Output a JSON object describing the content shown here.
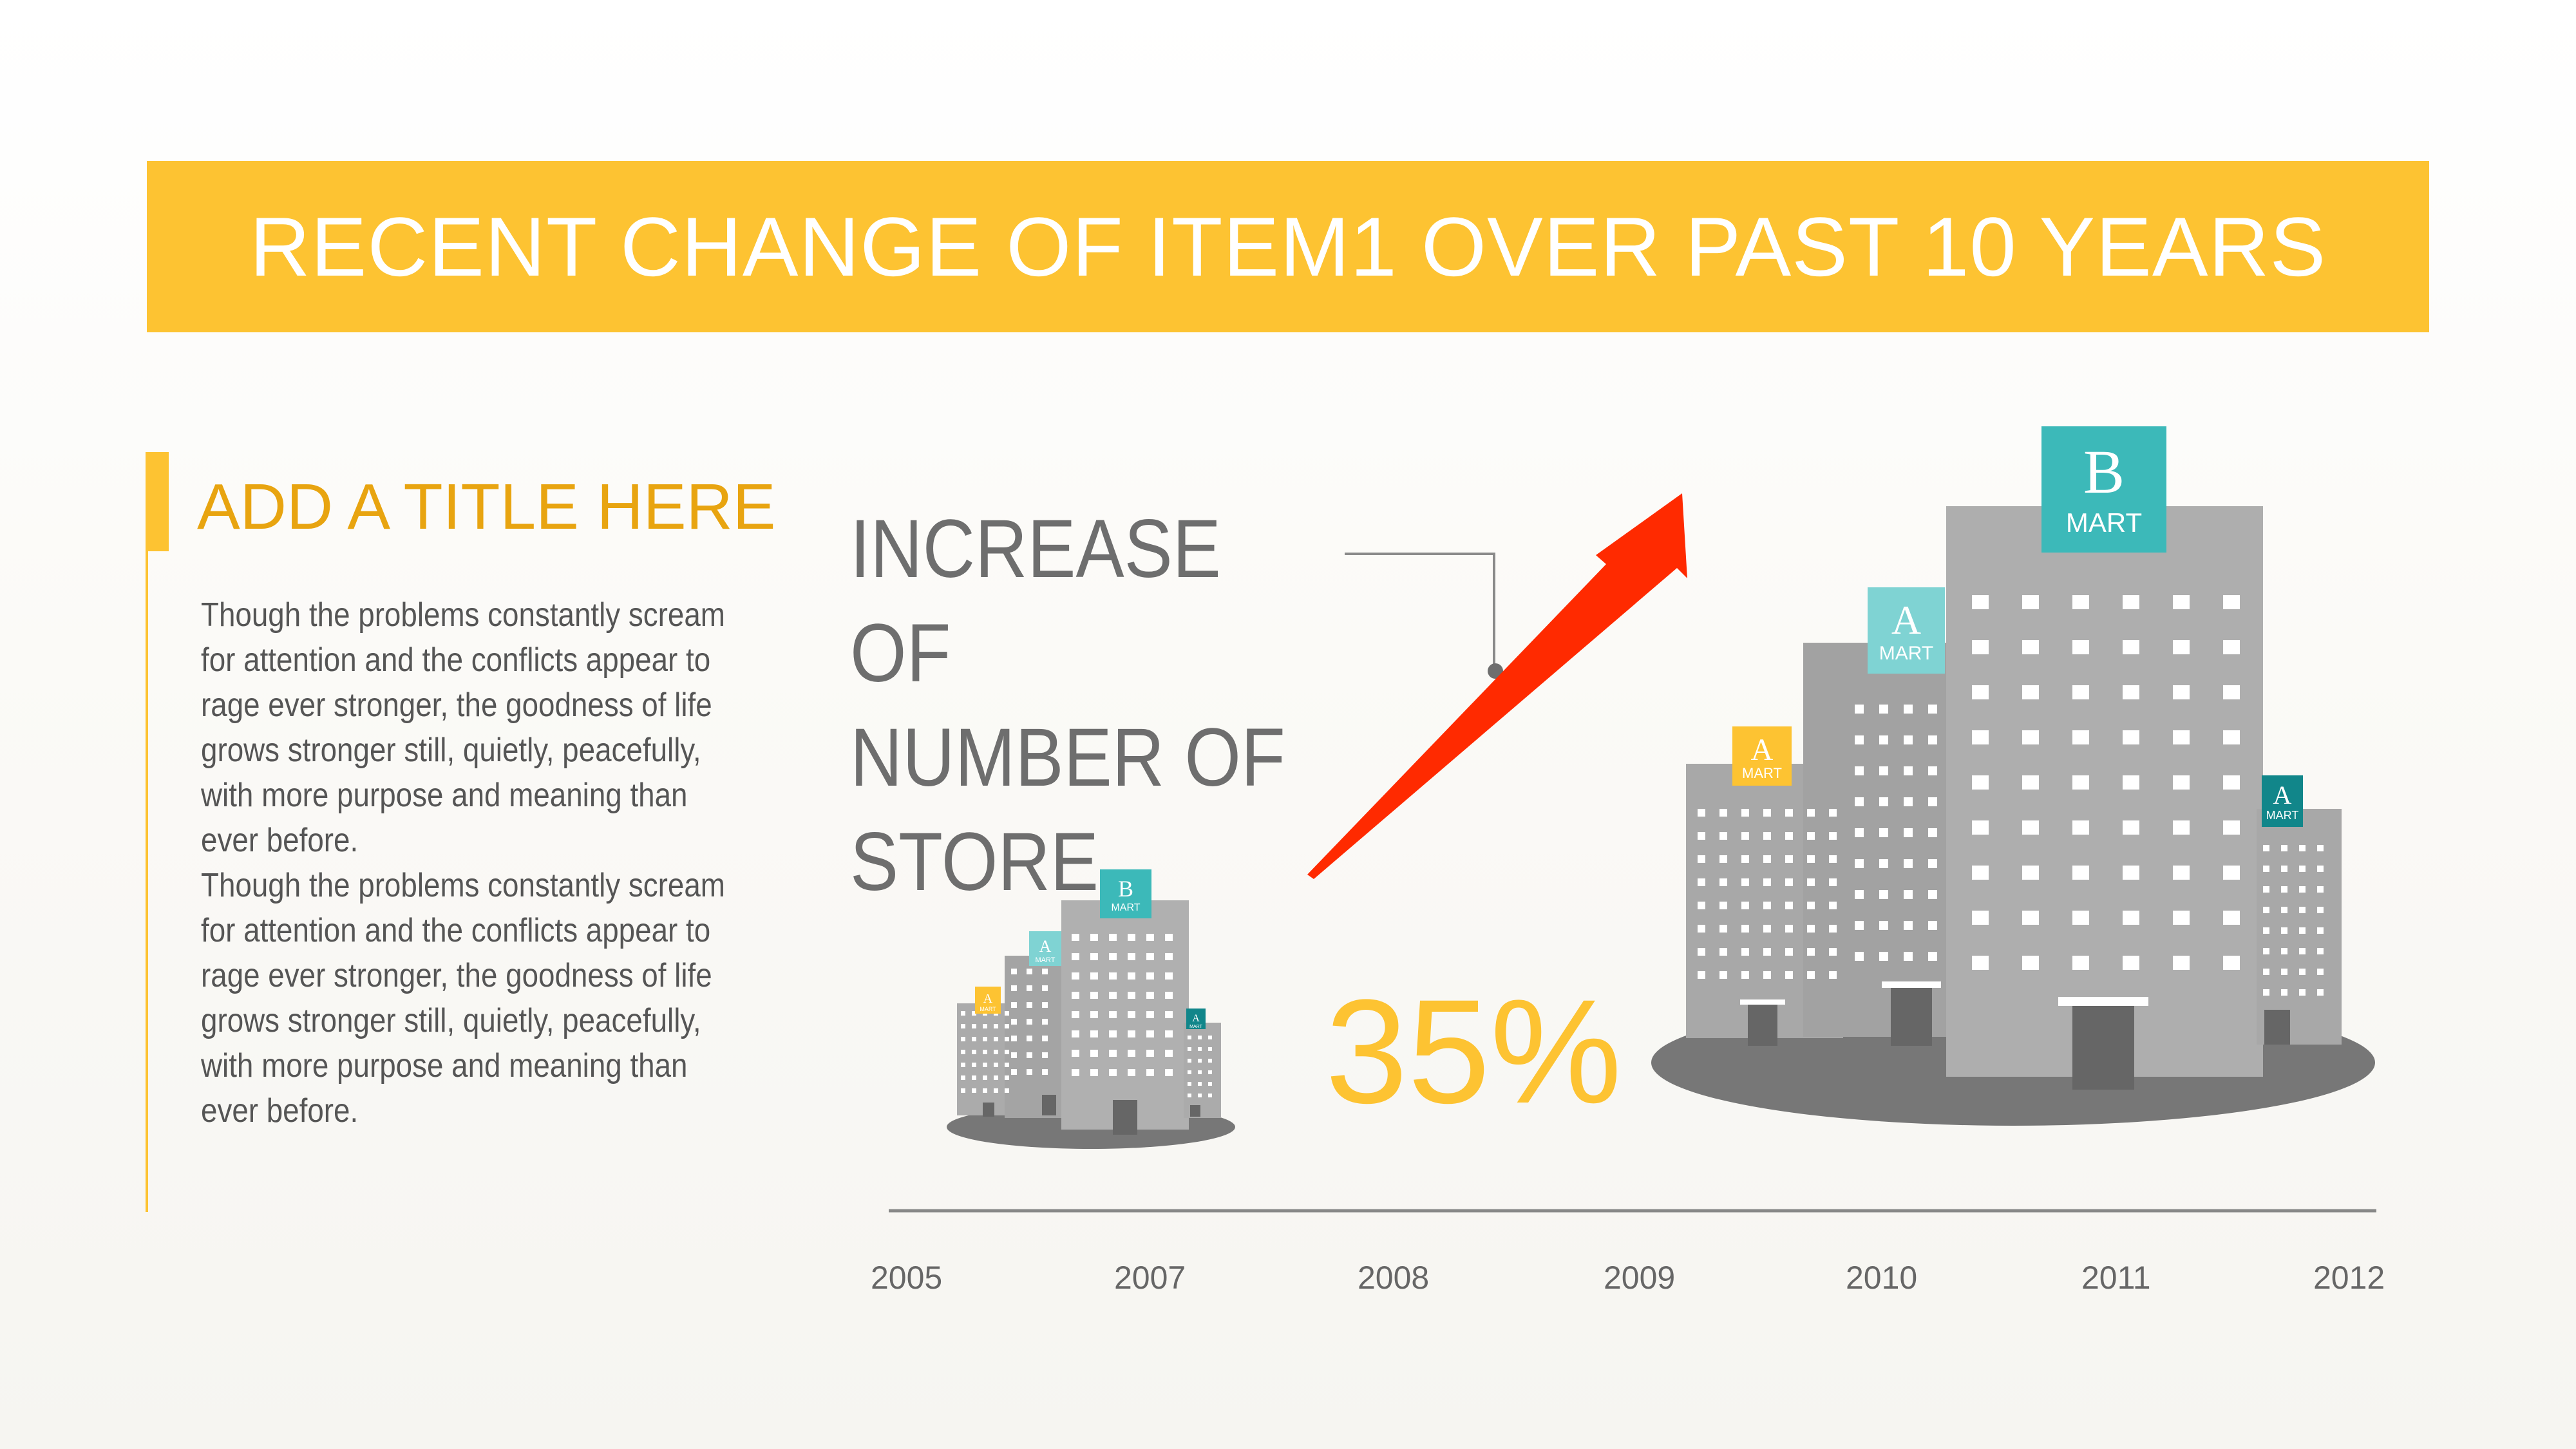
{
  "header": {
    "title": "RECENT CHANGE OF ITEM1 OVER PAST 10 YEARS"
  },
  "section": {
    "title": "ADD A TITLE HERE",
    "paragraphs": [
      "Though the problems constantly scream for attention and the conflicts appear to rage ever stronger, the goodness of life grows stronger still, quietly, peacefully, with more purpose and meaning than ever before.",
      "Though the problems constantly scream for attention and the conflicts appear to rage ever stronger, the goodness of life grows stronger still, quietly, peacefully, with more purpose and meaning than ever before."
    ]
  },
  "callout": {
    "lines": [
      "INCREASE OF",
      "NUMBER OF",
      "STORE"
    ],
    "percent": "35%"
  },
  "timeline": {
    "years": [
      "2005",
      "2007",
      "2008",
      "2009",
      "2010",
      "2011",
      "2012"
    ]
  },
  "signs": {
    "big_letter": "B",
    "small_letter": "A",
    "sign_word": "MART"
  },
  "colors": {
    "accent": "#fdc332",
    "title_accent": "#e8a410",
    "arrow": "#ff2a00",
    "teal": "#3cb9b9",
    "teal_light": "#7fd3d3",
    "teal_dark": "#11868a",
    "building": "#a8a8a8",
    "ground": "#777777"
  }
}
